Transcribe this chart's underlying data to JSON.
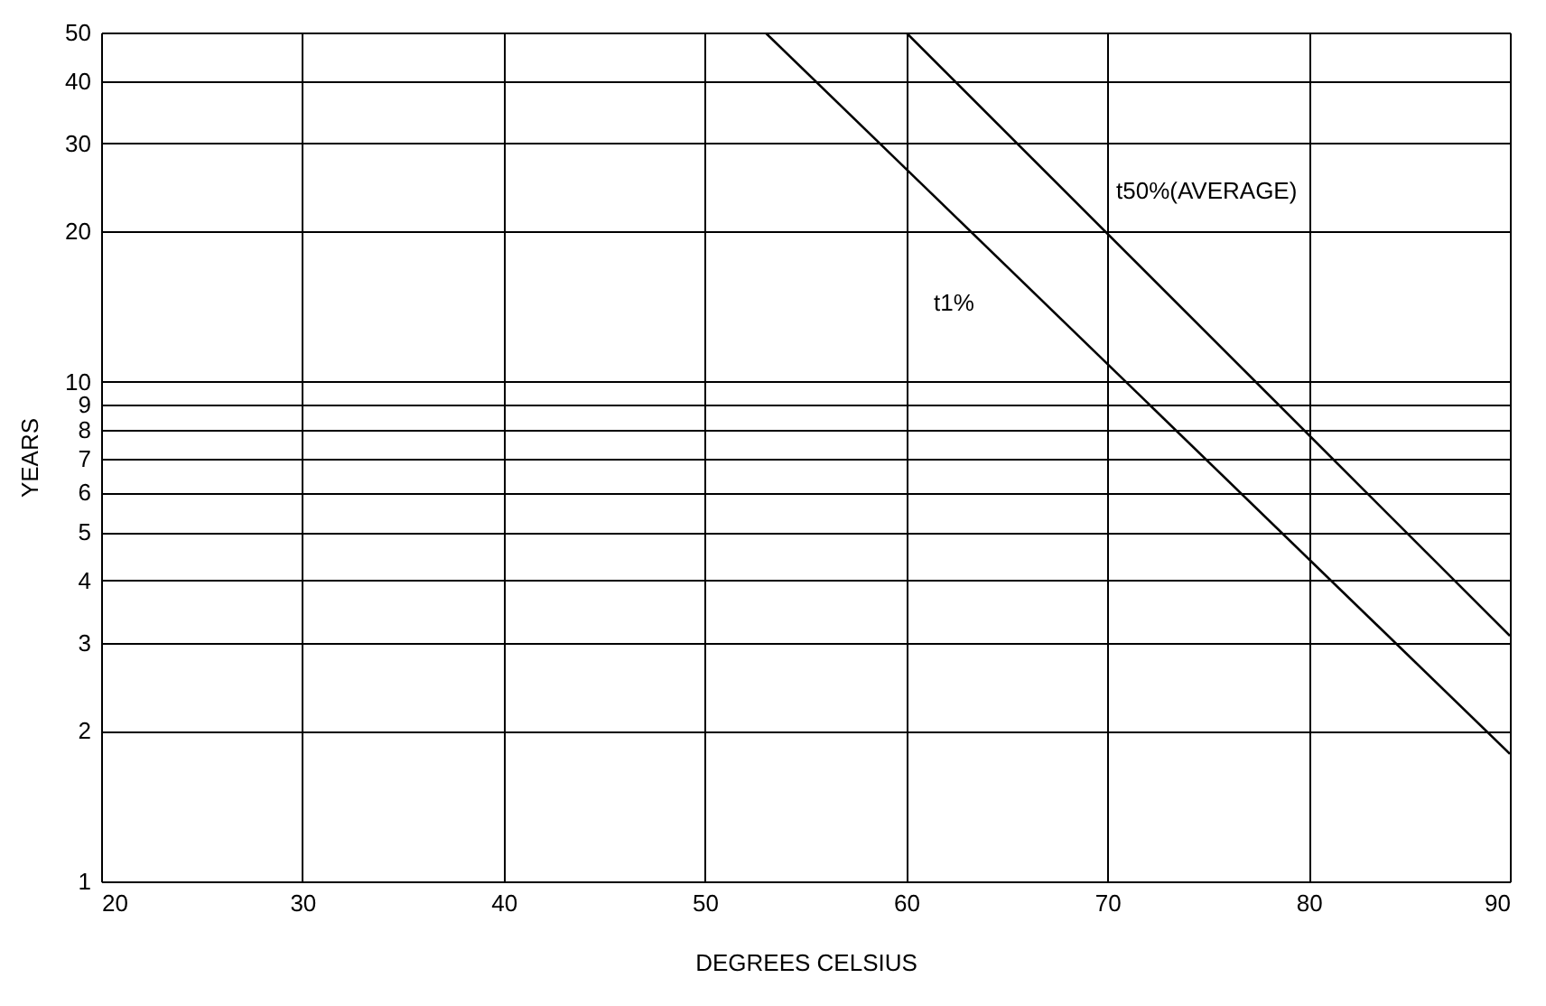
{
  "chart_data": {
    "type": "line",
    "xlabel": "DEGREES CELSIUS",
    "ylabel": "YEARS",
    "series": [
      {
        "name": "t1%",
        "color": "#000000",
        "x": [
          53,
          90
        ],
        "values": [
          50,
          1.8
        ]
      },
      {
        "name": "t50%(AVERAGE)",
        "color": "#000000",
        "x": [
          60,
          90
        ],
        "values": [
          50,
          3.1
        ]
      }
    ],
    "xlim": [
      20,
      90
    ],
    "xticks": [
      20,
      30,
      40,
      50,
      60,
      70,
      80,
      90
    ],
    "ylim": [
      1,
      50
    ],
    "yticks": [
      1,
      2,
      3,
      4,
      5,
      6,
      7,
      8,
      9,
      10,
      20,
      30,
      40,
      50
    ],
    "log": "y",
    "grid": true,
    "marker": "none",
    "line_style": "solid"
  }
}
